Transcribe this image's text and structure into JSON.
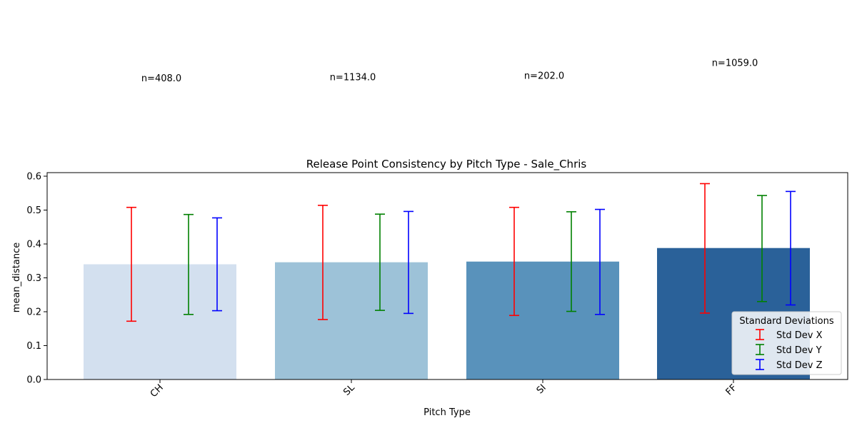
{
  "chart_data": {
    "type": "bar",
    "title": "Release Point Consistency by Pitch Type - Sale_Chris",
    "xlabel": "Pitch Type",
    "ylabel": "mean_distance",
    "categories": [
      "CH",
      "SL",
      "SI",
      "FF"
    ],
    "values": [
      0.34,
      0.346,
      0.348,
      0.388
    ],
    "bar_colors": [
      "#d3e0ef",
      "#9dc2d8",
      "#5992bb",
      "#2a6199"
    ],
    "counts": [
      "n=408.0",
      "n=1134.0",
      "n=202.0",
      "n=1059.0"
    ],
    "ylim": [
      0,
      0.6
    ],
    "yticks": [
      "0.0",
      "0.1",
      "0.2",
      "0.3",
      "0.4",
      "0.5",
      "0.6"
    ],
    "grid": false,
    "legend": {
      "title": "Standard Deviations",
      "placement": "lower-right",
      "entries": [
        "Std Dev X",
        "Std Dev Y",
        "Std Dev Z"
      ]
    },
    "error_series": [
      {
        "name": "Std Dev X",
        "color": "#ff0000",
        "ranges": [
          [
            0.172,
            0.508
          ],
          [
            0.177,
            0.514
          ],
          [
            0.189,
            0.508
          ],
          [
            0.196,
            0.578
          ]
        ]
      },
      {
        "name": "Std Dev Y",
        "color": "#008000",
        "ranges": [
          [
            0.192,
            0.487
          ],
          [
            0.204,
            0.488
          ],
          [
            0.201,
            0.495
          ],
          [
            0.23,
            0.543
          ]
        ]
      },
      {
        "name": "Std Dev Z",
        "color": "#0000ff",
        "ranges": [
          [
            0.203,
            0.477
          ],
          [
            0.195,
            0.496
          ],
          [
            0.192,
            0.502
          ],
          [
            0.22,
            0.555
          ]
        ]
      }
    ],
    "count_label_values": [
      0.888,
      0.892,
      0.896,
      0.934
    ]
  }
}
